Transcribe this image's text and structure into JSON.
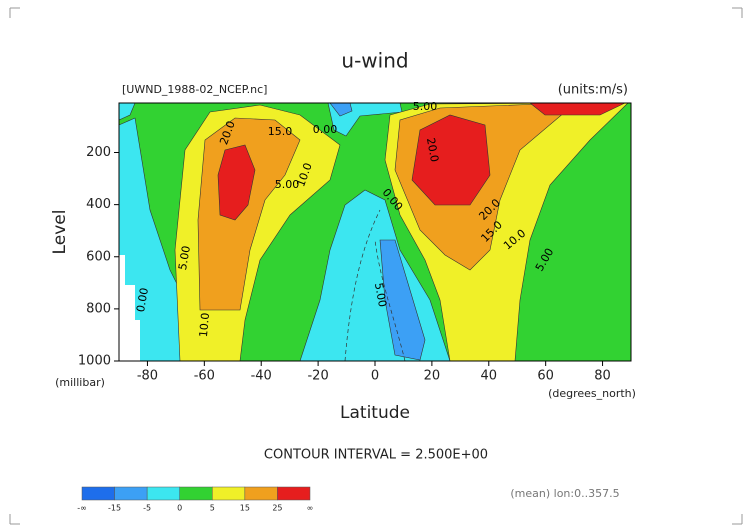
{
  "chart_data": {
    "type": "contour",
    "title": "u-wind",
    "subtitle": "[UWND_1988-02_NCEP.nc]",
    "units": "(units:m/s)",
    "ylabel": "Level",
    "yunit": "(millibar)",
    "xlabel": "Latitude",
    "xunit": "(degrees_north)",
    "xlim": [
      -90,
      90
    ],
    "xticks": [
      -80,
      -60,
      -40,
      -20,
      0,
      20,
      40,
      60,
      80
    ],
    "ylim": [
      1000,
      10
    ],
    "yticks": [
      200,
      400,
      600,
      800,
      1000
    ],
    "contour_interval": "CONTOUR INTERVAL = 2.500E+00",
    "note": "(mean) lon:0..357.5",
    "contour_labels": [
      {
        "value": 20,
        "label": "20.0"
      },
      {
        "value": 15,
        "label": "15.0"
      },
      {
        "value": 0,
        "label": "0.00"
      },
      {
        "value": 10,
        "label": "10.0"
      },
      {
        "value": 5,
        "label": "5.00"
      },
      {
        "value": 5,
        "label": "5.00"
      },
      {
        "value": 0,
        "label": "0.00"
      },
      {
        "value": 10,
        "label": "10.0"
      },
      {
        "value": 5,
        "label": "5.00"
      },
      {
        "value": 0,
        "label": "0.00"
      },
      {
        "value": 5,
        "label": "5.00"
      },
      {
        "value": 20,
        "label": "20.0"
      },
      {
        "value": 20,
        "label": "20.0"
      },
      {
        "value": 15,
        "label": "15.0"
      },
      {
        "value": 10,
        "label": "10.0"
      },
      {
        "value": 5,
        "label": "5.00"
      }
    ],
    "colorbar": {
      "levels": [
        -15,
        -5,
        0,
        5,
        15,
        25
      ],
      "low_label": "-∞",
      "high_label": "∞",
      "colors": [
        "#1e6eeb",
        "#3ca0f5",
        "#3ce6f0",
        "#32d232",
        "#f0f028",
        "#f0a01e",
        "#e61e1e"
      ]
    }
  }
}
